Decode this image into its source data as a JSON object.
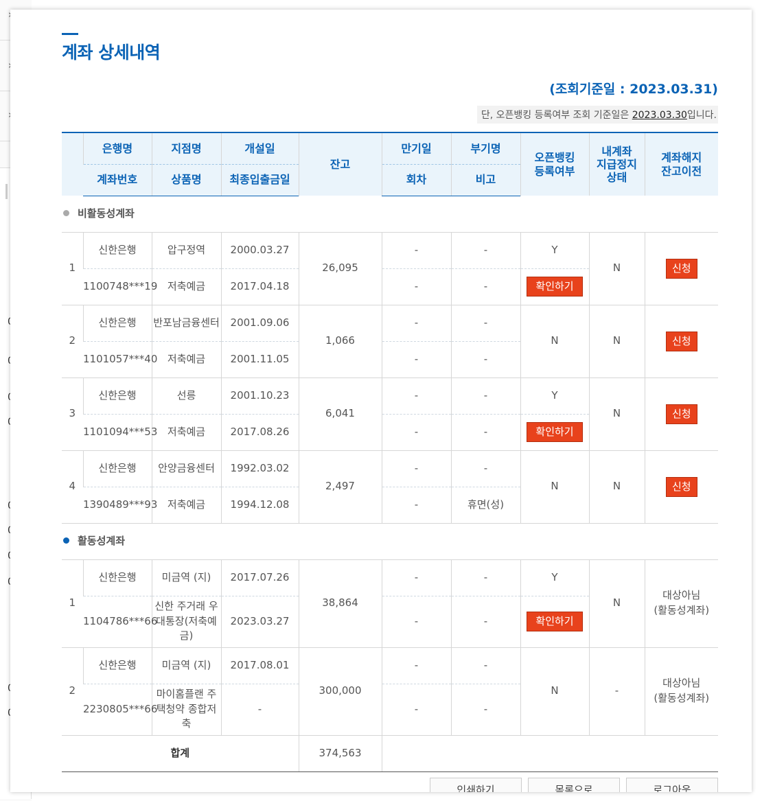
{
  "left_sidebar": {
    "fragments": [
      "0",
      "0",
      "0",
      "0",
      "0",
      "0",
      "0",
      "0",
      "0",
      "0"
    ]
  },
  "page": {
    "title": "계좌 상세내역",
    "ref_date": "(조회기준일 : 2023.03.31)",
    "note_prefix": "단, 오픈뱅킹 등록여부 조회 기준일은 ",
    "note_date": "2023.03.30",
    "note_suffix": "입니다."
  },
  "table": {
    "headers": {
      "bank": "은행명",
      "branch": "지점명",
      "opened": "개설일",
      "balance": "잔고",
      "maturity": "만기일",
      "subname": "부기명",
      "openbanking_1": "오픈뱅킹",
      "openbanking_2": "등록여부",
      "suspend_1": "내계좌",
      "suspend_2": "지급정지",
      "suspend_3": "상태",
      "transfer_1": "계좌해지",
      "transfer_2": "잔고이전",
      "account_no": "계좌번호",
      "product": "상품명",
      "last_tx": "최종입출금일",
      "round": "회차",
      "remark": "비고"
    },
    "section_inactive": "비활동성계좌",
    "section_active": "활동성계좌",
    "inactive": [
      {
        "no": "1",
        "bank": "신한은행",
        "account": "1100748***19",
        "branch": "압구정역",
        "product": "저축예금",
        "opened": "2000.03.27",
        "last_tx": "2017.04.18",
        "balance": "26,095",
        "maturity": "-",
        "round": "-",
        "subname": "-",
        "remark": "-",
        "ob": "Y",
        "ob_btn": "확인하기",
        "suspend": "N",
        "action": "신청"
      },
      {
        "no": "2",
        "bank": "신한은행",
        "account": "1101057***40",
        "branch": "반포남금융센터",
        "product": "저축예금",
        "opened": "2001.09.06",
        "last_tx": "2001.11.05",
        "balance": "1,066",
        "maturity": "-",
        "round": "-",
        "subname": "-",
        "remark": "-",
        "ob": "N",
        "ob_btn": "",
        "suspend": "N",
        "action": "신청"
      },
      {
        "no": "3",
        "bank": "신한은행",
        "account": "1101094***53",
        "branch": "선릉",
        "product": "저축예금",
        "opened": "2001.10.23",
        "last_tx": "2017.08.26",
        "balance": "6,041",
        "maturity": "-",
        "round": "-",
        "subname": "-",
        "remark": "-",
        "ob": "Y",
        "ob_btn": "확인하기",
        "suspend": "N",
        "action": "신청"
      },
      {
        "no": "4",
        "bank": "신한은행",
        "account": "1390489***93",
        "branch": "안양금융센터",
        "product": "저축예금",
        "opened": "1992.03.02",
        "last_tx": "1994.12.08",
        "balance": "2,497",
        "maturity": "-",
        "round": "-",
        "subname": "-",
        "remark": "휴면(성)",
        "ob": "N",
        "ob_btn": "",
        "suspend": "N",
        "action": "신청"
      }
    ],
    "active": [
      {
        "no": "1",
        "bank": "신한은행",
        "account": "1104786***66",
        "branch": "미금역 (지)",
        "product": "신한 주거래 우대통장(저축예금)",
        "opened": "2017.07.26",
        "last_tx": "2023.03.27",
        "balance": "38,864",
        "maturity": "-",
        "round": "-",
        "subname": "-",
        "remark": "-",
        "ob": "Y",
        "ob_btn": "확인하기",
        "suspend": "N",
        "action_1": "대상아님",
        "action_2": "(활동성계좌)"
      },
      {
        "no": "2",
        "bank": "신한은행",
        "account": "2230805***66",
        "branch": "미금역 (지)",
        "product": "마이홈플랜 주택청약 종합저축",
        "opened": "2017.08.01",
        "last_tx": "-",
        "balance": "300,000",
        "maturity": "-",
        "round": "-",
        "subname": "-",
        "remark": "-",
        "ob": "N",
        "ob_btn": "",
        "suspend": "-",
        "action_1": "대상아님",
        "action_2": "(활동성계좌)"
      }
    ],
    "total_label": "합계",
    "total_value": "374,563"
  },
  "buttons": {
    "print": "인쇄하기",
    "list": "목록으로",
    "logout": "로그아웃"
  },
  "colors": {
    "accent": "#0b63b5",
    "action_red": "#e8421c",
    "header_bg": "#eaf4fb"
  }
}
